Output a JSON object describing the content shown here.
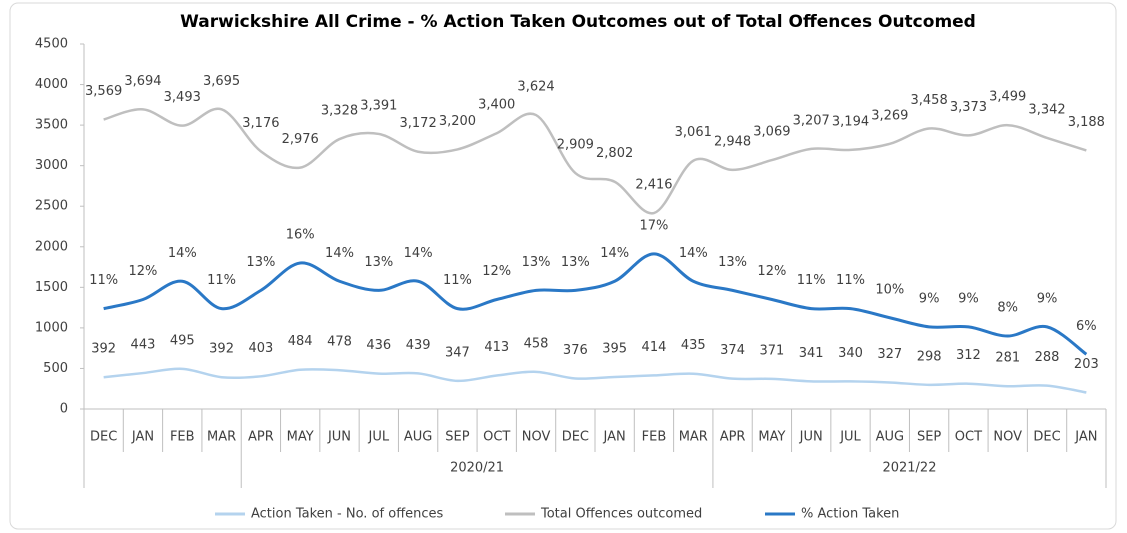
{
  "chart_data": {
    "type": "line",
    "title": "Warwickshire All Crime - % Action Taken Outcomes out of Total Offences Outcomed",
    "categories": [
      "DEC",
      "JAN",
      "FEB",
      "MAR",
      "APR",
      "MAY",
      "JUN",
      "JUL",
      "AUG",
      "SEP",
      "OCT",
      "NOV",
      "DEC",
      "JAN",
      "FEB",
      "MAR",
      "APR",
      "MAY",
      "JUN",
      "JUL",
      "AUG",
      "SEP",
      "OCT",
      "NOV",
      "DEC",
      "JAN"
    ],
    "category_groups": [
      {
        "name": "2020/21",
        "from": 4,
        "to": 15
      },
      {
        "name": "2021/22",
        "from": 16,
        "to": 25
      }
    ],
    "ylim": [
      0,
      4500
    ],
    "yticks": [
      0,
      500,
      1000,
      1500,
      2000,
      2500,
      3000,
      3500,
      4000,
      4500
    ],
    "y2lim": [
      0,
      40
    ],
    "legend": "bottom",
    "series": [
      {
        "name": "Action Taken - No. of offences",
        "color": "#b4d3ee",
        "values": [
          392,
          443,
          495,
          392,
          403,
          484,
          478,
          436,
          439,
          347,
          413,
          458,
          376,
          395,
          414,
          435,
          374,
          371,
          341,
          340,
          327,
          298,
          312,
          281,
          288,
          203
        ]
      },
      {
        "name": "Total Offences outcomed",
        "color": "#bfbfbf",
        "values": [
          3569,
          3694,
          3493,
          3695,
          3176,
          2976,
          3328,
          3391,
          3172,
          3200,
          3400,
          3624,
          2909,
          2802,
          2416,
          3061,
          2948,
          3069,
          3207,
          3194,
          3269,
          3458,
          3373,
          3499,
          3342,
          3188
        ],
        "value_labels": [
          "3,569",
          "3,694",
          "3,493",
          "3,695",
          "3,176",
          "2,976",
          "3,328",
          "3,391",
          "3,172",
          "3,200",
          "3,400",
          "3,624",
          "2,909",
          "2,802",
          "2,416",
          "3,061",
          "2,948",
          "3,069",
          "3,207",
          "3,194",
          "3,269",
          "3,458",
          "3,373",
          "3,499",
          "3,342",
          "3,188"
        ]
      },
      {
        "name": "% Action Taken",
        "color": "#2a78c6",
        "axis": "y2",
        "values": [
          11,
          12,
          14,
          11,
          13,
          16,
          14,
          13,
          14,
          11,
          12,
          13,
          13,
          14,
          17,
          14,
          13,
          12,
          11,
          11,
          10,
          9,
          9,
          8,
          9,
          6
        ],
        "value_labels": [
          "11%",
          "12%",
          "14%",
          "11%",
          "13%",
          "16%",
          "14%",
          "13%",
          "14%",
          "11%",
          "12%",
          "13%",
          "13%",
          "14%",
          "17%",
          "14%",
          "13%",
          "12%",
          "11%",
          "11%",
          "10%",
          "9%",
          "9%",
          "8%",
          "9%",
          "6%"
        ]
      }
    ]
  }
}
